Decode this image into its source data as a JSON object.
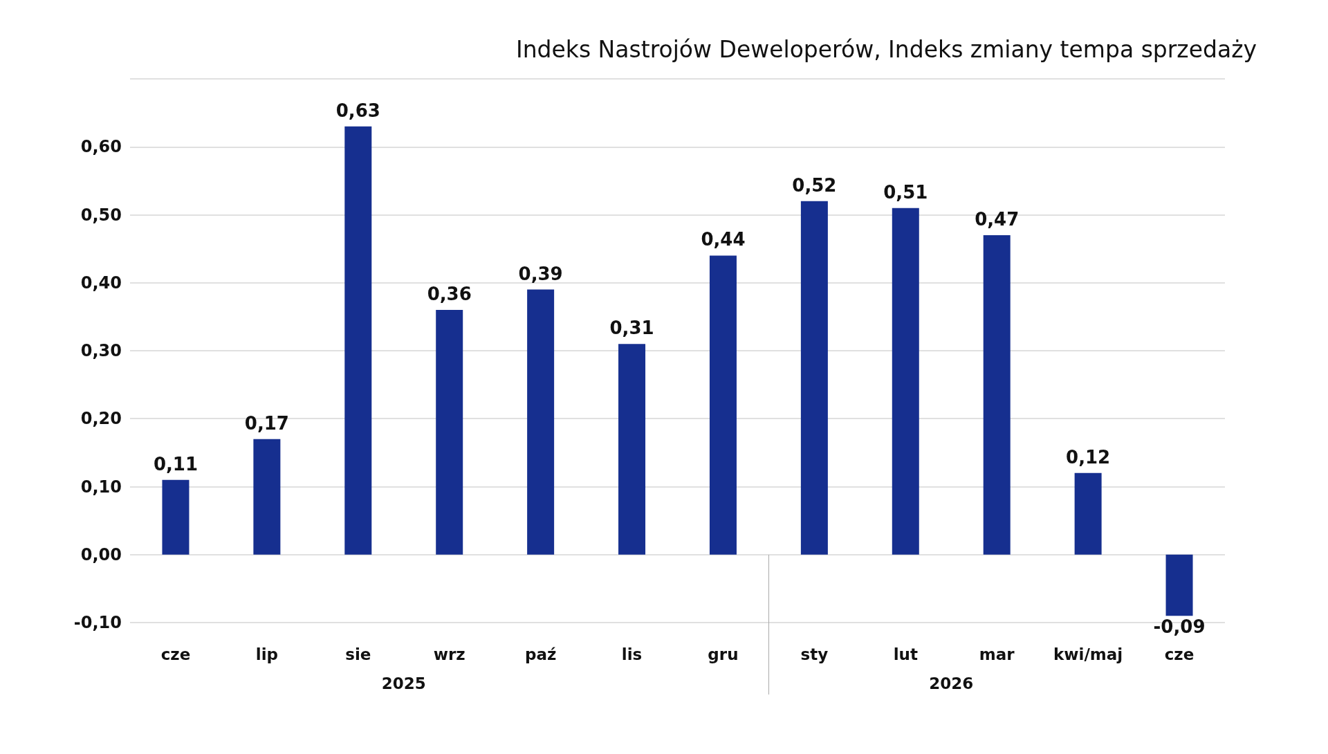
{
  "chart_data": {
    "type": "bar",
    "title": "Indeks Nastrojów Deweloperów, Indeks zmiany tempa sprzedaży",
    "categories": [
      "cze",
      "lip",
      "sie",
      "wrz",
      "paź",
      "lis",
      "gru",
      "sty",
      "lut",
      "mar",
      "kwi/maj",
      "cze"
    ],
    "values": [
      0.11,
      0.17,
      0.63,
      0.36,
      0.39,
      0.31,
      0.44,
      0.52,
      0.51,
      0.47,
      0.12,
      -0.09
    ],
    "value_labels": [
      "0,11",
      "0,17",
      "0,63",
      "0,36",
      "0,39",
      "0,31",
      "0,44",
      "0,52",
      "0,51",
      "0,47",
      "0,12",
      "-0,09"
    ],
    "color": "#162f8f",
    "ylim": [
      -0.1,
      0.7
    ],
    "yticks": [
      {
        "value": -0.1,
        "label": "-0,10"
      },
      {
        "value": 0,
        "label": "0,00"
      },
      {
        "value": 0.1,
        "label": "0,10"
      },
      {
        "value": 0.2,
        "label": "0,20"
      },
      {
        "value": 0.3,
        "label": "0,30"
      },
      {
        "value": 0.4,
        "label": "0,40"
      },
      {
        "value": 0.5,
        "label": "0,50"
      },
      {
        "value": 0.6,
        "label": "0,60"
      },
      {
        "value": 0.7,
        "label": null
      }
    ],
    "grid": "y",
    "annotations": [
      "2025",
      "2026"
    ]
  }
}
